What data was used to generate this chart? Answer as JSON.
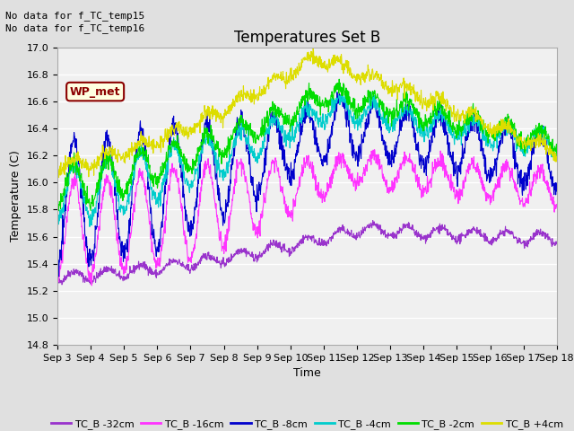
{
  "title": "Temperatures Set B",
  "xlabel": "Time",
  "ylabel": "Temperature (C)",
  "ylim": [
    14.8,
    17.0
  ],
  "xlim": [
    0,
    360
  ],
  "x_tick_labels": [
    "Sep 3",
    "Sep 4",
    "Sep 5",
    "Sep 6",
    "Sep 7",
    "Sep 8",
    "Sep 9",
    "Sep 10",
    "Sep 11",
    "Sep 12",
    "Sep 13",
    "Sep 14",
    "Sep 15",
    "Sep 16",
    "Sep 17",
    "Sep 18"
  ],
  "x_tick_positions": [
    0,
    24,
    48,
    72,
    96,
    120,
    144,
    168,
    192,
    216,
    240,
    264,
    288,
    312,
    336,
    360
  ],
  "yticks": [
    14.8,
    15.0,
    15.2,
    15.4,
    15.6,
    15.8,
    16.0,
    16.2,
    16.4,
    16.6,
    16.8,
    17.0
  ],
  "series_colors": {
    "TC_B -32cm": "#9933CC",
    "TC_B -16cm": "#FF33FF",
    "TC_B -8cm": "#0000CC",
    "TC_B -4cm": "#00CCCC",
    "TC_B -2cm": "#00DD00",
    "TC_B +4cm": "#DDDD00"
  },
  "bg_color": "#E0E0E0",
  "plot_bg_color": "#F0F0F0",
  "grid_color": "#FFFFFF",
  "annotations": [
    "No data for f_TC_temp15",
    "No data for f_TC_temp16"
  ],
  "wp_met_label": "WP_met",
  "title_fontsize": 12,
  "label_fontsize": 9,
  "tick_fontsize": 8
}
